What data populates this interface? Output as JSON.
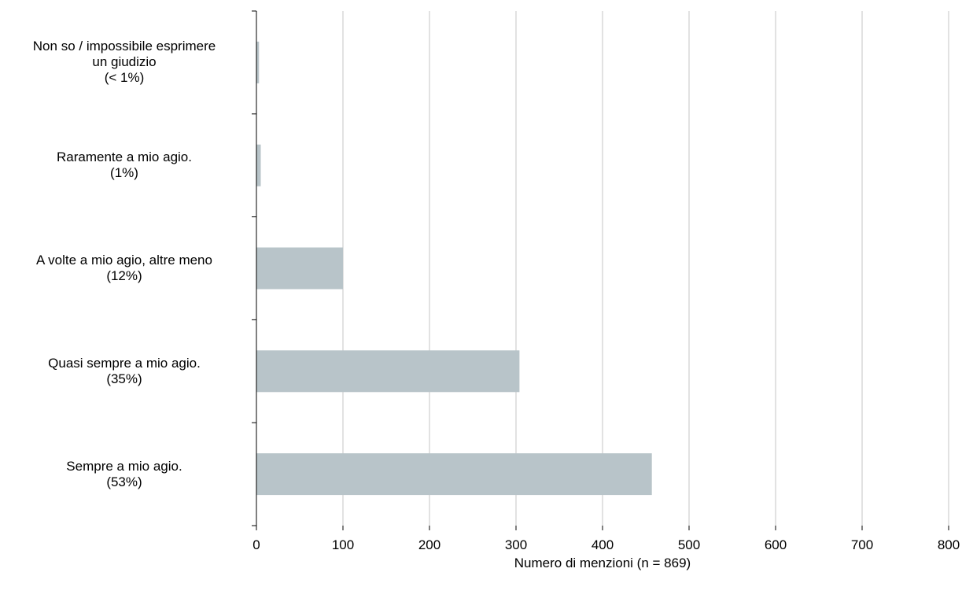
{
  "chart_data": {
    "type": "bar",
    "orientation": "horizontal",
    "categories": [
      [
        "Non so / impossibile esprimere",
        "un giudizio",
        "(< 1%)"
      ],
      [
        "Raramente a mio agio.",
        "(1%)"
      ],
      [
        "A volte a mio agio, altre meno",
        "(12%)"
      ],
      [
        "Quasi sempre a mio agio.",
        "(35%)"
      ],
      [
        "Sempre a mio agio.",
        "(53%)"
      ]
    ],
    "values": [
      3,
      5,
      100,
      304,
      457
    ],
    "xlim": [
      0,
      800
    ],
    "xticks": [
      0,
      100,
      200,
      300,
      400,
      500,
      600,
      700,
      800
    ],
    "xlabel": "Numero di menzioni (n = 869)",
    "ylabel": "",
    "title": "",
    "grid": "vertical",
    "colors": {
      "bar": "#b8c4c9",
      "grid": "#d9d9d9",
      "axis": "#000000"
    }
  }
}
